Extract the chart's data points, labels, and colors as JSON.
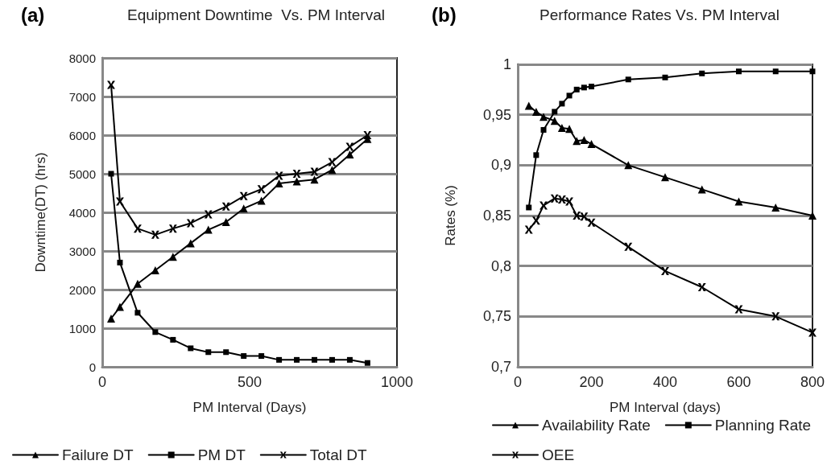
{
  "chart_data": [
    {
      "type": "line",
      "title": "Equipment Downtime  Vs. PM Interval",
      "xlabel": "PM Interval (Days)",
      "ylabel": "Downtime(DT) (hrs)",
      "annotations": [
        "(a)"
      ],
      "x": [
        30,
        60,
        120,
        180,
        240,
        300,
        360,
        420,
        480,
        540,
        600,
        660,
        720,
        780,
        840,
        900
      ],
      "xlim": [
        0,
        1000
      ],
      "xticks": [
        0,
        500,
        1000
      ],
      "ylim": [
        0,
        8000
      ],
      "yticks": [
        0,
        1000,
        2000,
        3000,
        4000,
        5000,
        6000,
        7000,
        8000
      ],
      "grid": "y",
      "legend": "bottom",
      "line_style": "solid",
      "series": [
        {
          "name": "Failure DT",
          "color": "#000000",
          "marker": "triangle",
          "values": [
            1250,
            1550,
            2150,
            2500,
            2850,
            3200,
            3550,
            3750,
            4100,
            4300,
            4750,
            4800,
            4850,
            5100,
            5500,
            5900
          ]
        },
        {
          "name": "PM DT",
          "color": "#000000",
          "marker": "square",
          "values": [
            5000,
            2700,
            1400,
            900,
            700,
            480,
            380,
            380,
            280,
            280,
            180,
            180,
            180,
            180,
            180,
            100
          ]
        },
        {
          "name": "Total DT",
          "color": "#000000",
          "marker": "cross",
          "values": [
            7300,
            4280,
            3580,
            3420,
            3580,
            3720,
            3950,
            4150,
            4420,
            4600,
            4950,
            5000,
            5050,
            5300,
            5700,
            6000
          ]
        }
      ]
    },
    {
      "type": "line",
      "title": "Performance Rates Vs. PM Interval",
      "xlabel": "PM Interval (days)",
      "ylabel": "Rates (%)",
      "annotations": [
        "(b)"
      ],
      "x": [
        30,
        50,
        70,
        100,
        120,
        140,
        160,
        180,
        200,
        300,
        400,
        500,
        600,
        700,
        800
      ],
      "xlim": [
        0,
        800
      ],
      "xticks": [
        0,
        200,
        400,
        600,
        800
      ],
      "ylim": [
        0.7,
        1
      ],
      "yticks": [
        {
          "value": 0.7,
          "label": "0,7"
        },
        {
          "value": 0.75,
          "label": "0,75"
        },
        {
          "value": 0.8,
          "label": "0,8"
        },
        {
          "value": 0.85,
          "label": "0,85"
        },
        {
          "value": 0.9,
          "label": "0,9"
        },
        {
          "value": 0.95,
          "label": "0,95"
        },
        1
      ],
      "grid": "y",
      "legend": "bottom",
      "line_style": "solid",
      "series": [
        {
          "name": "Availability Rate",
          "color": "#000000",
          "marker": "triangle",
          "values": [
            0.959,
            0.953,
            0.948,
            0.944,
            0.937,
            0.936,
            0.924,
            0.925,
            0.921,
            0.9,
            0.888,
            0.876,
            0.864,
            0.858,
            0.85
          ]
        },
        {
          "name": "Planning Rate",
          "color": "#000000",
          "marker": "square",
          "values": [
            0.858,
            0.91,
            0.935,
            0.953,
            0.961,
            0.969,
            0.975,
            0.977,
            0.978,
            0.985,
            0.987,
            0.991,
            0.993,
            0.993,
            0.993
          ]
        },
        {
          "name": "OEE",
          "color": "#000000",
          "marker": "cross",
          "values": [
            0.836,
            0.845,
            0.86,
            0.867,
            0.866,
            0.864,
            0.85,
            0.849,
            0.843,
            0.819,
            0.795,
            0.779,
            0.757,
            0.75,
            0.734
          ]
        }
      ]
    }
  ]
}
